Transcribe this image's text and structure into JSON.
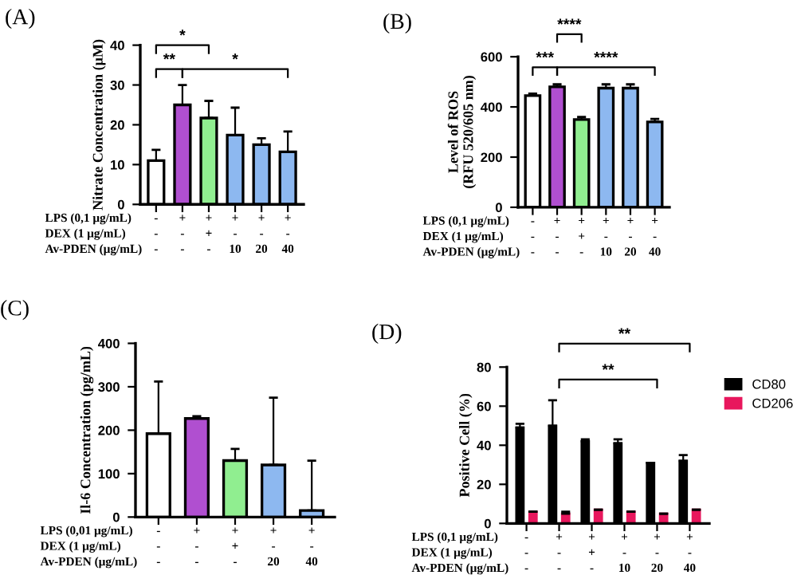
{
  "chart_data": [
    {
      "type": "bar",
      "title": "(A)",
      "ylabel": "Nitrate Concentration (μM)",
      "categories": [
        "-\n-\n-",
        "+\n-\n-",
        "+\n+\n-",
        "+\n-\n10",
        "+\n-\n20",
        "+\n-\n40"
      ],
      "values": [
        11,
        25,
        21.7,
        17.4,
        15,
        13.2
      ],
      "colors": [
        "#ffffff",
        "#b04fd0",
        "#90ee90",
        "#8db8f0",
        "#8db8f0",
        "#8db8f0"
      ],
      "errors": [
        [
          11,
          13.7
        ],
        [
          25,
          30
        ],
        [
          21.7,
          26
        ],
        [
          17.4,
          24.3
        ],
        [
          15,
          16.6
        ],
        [
          13.2,
          18.3
        ]
      ],
      "ylim": [
        0,
        40
      ],
      "yticks": [
        0,
        10,
        20,
        30,
        40
      ],
      "annotations": [
        "LPS (0,1 μg/mL)",
        "DEX (1 μg/mL)",
        "Av-PDEN (μg/mL)",
        "**",
        "*",
        "*"
      ]
    },
    {
      "type": "bar",
      "title": "(B)",
      "ylabel": "Level of ROS\n(RFU 520/605 nm)",
      "categories": [
        "-\n-\n-",
        "+\n-\n-",
        "+\n+\n-",
        "+\n-\n10",
        "+\n-\n20",
        "+\n-\n40"
      ],
      "values": [
        445,
        480,
        350,
        475,
        475,
        340
      ],
      "colors": [
        "#ffffff",
        "#b04fd0",
        "#90ee90",
        "#8db8f0",
        "#8db8f0",
        "#8db8f0"
      ],
      "errors": [
        [
          445,
          453
        ],
        [
          480,
          490
        ],
        [
          350,
          360
        ],
        [
          475,
          490
        ],
        [
          475,
          490
        ],
        [
          340,
          352
        ]
      ],
      "ylim": [
        0,
        600
      ],
      "yticks": [
        0,
        200,
        400,
        600
      ],
      "annotations": [
        "LPS (0,1 μg/mL)",
        "DEX (1 μg/mL)",
        "Av-PDEN (μg/mL)",
        "***",
        "****",
        "****"
      ]
    },
    {
      "type": "bar",
      "title": "(C)",
      "ylabel": "Il-6 Concentration (pg/mL)",
      "categories": [
        "-\n-\n-",
        "+\n-\n-",
        "+\n+\n-",
        "+\n-\n20",
        "+\n-\n40"
      ],
      "values": [
        192,
        227,
        130,
        120,
        15
      ],
      "colors": [
        "#ffffff",
        "#b04fd0",
        "#90ee90",
        "#8db8f0",
        "#8db8f0"
      ],
      "errors": [
        [
          192,
          312
        ],
        [
          227,
          232
        ],
        [
          130,
          157
        ],
        [
          120,
          275
        ],
        [
          15,
          130
        ]
      ],
      "ylim": [
        0,
        400
      ],
      "yticks": [
        0,
        100,
        200,
        300,
        400
      ],
      "annotations": [
        "LPS (0,01 μg/mL)",
        "DEX (1 μg/mL)",
        "Av-PDEN (μg/mL)"
      ]
    },
    {
      "type": "bar",
      "title": "(D)",
      "ylabel": "Positive Cell (%)",
      "categories": [
        "-\n-\n-",
        "+\n-\n-",
        "+\n+\n-",
        "+\n-\n10",
        "+\n-\n20",
        "+\n-\n40"
      ],
      "series": [
        {
          "name": "CD80",
          "color": "#000000",
          "values": [
            49,
            50,
            42,
            41,
            31,
            32
          ],
          "errors": [
            [
              49,
              51
            ],
            [
              50,
              63
            ],
            [
              42,
              43
            ],
            [
              41,
              43
            ],
            null,
            [
              32,
              35
            ]
          ]
        },
        {
          "name": "CD206",
          "color": "#e8175d",
          "values": [
            6,
            5,
            7,
            6,
            5,
            7
          ],
          "errors": [
            [
              6,
              6
            ],
            [
              5,
              6
            ],
            [
              7,
              7
            ],
            [
              6,
              6
            ],
            [
              5,
              5
            ],
            [
              7,
              7
            ]
          ]
        }
      ],
      "ylim": [
        0,
        80
      ],
      "yticks": [
        0,
        20,
        40,
        60,
        80
      ],
      "legend": "right",
      "annotations": [
        "LPS (0,1 μg/mL)",
        "DEX (1 μg/mL)",
        "Av-PDEN (μg/mL)",
        "**",
        "**"
      ]
    }
  ]
}
